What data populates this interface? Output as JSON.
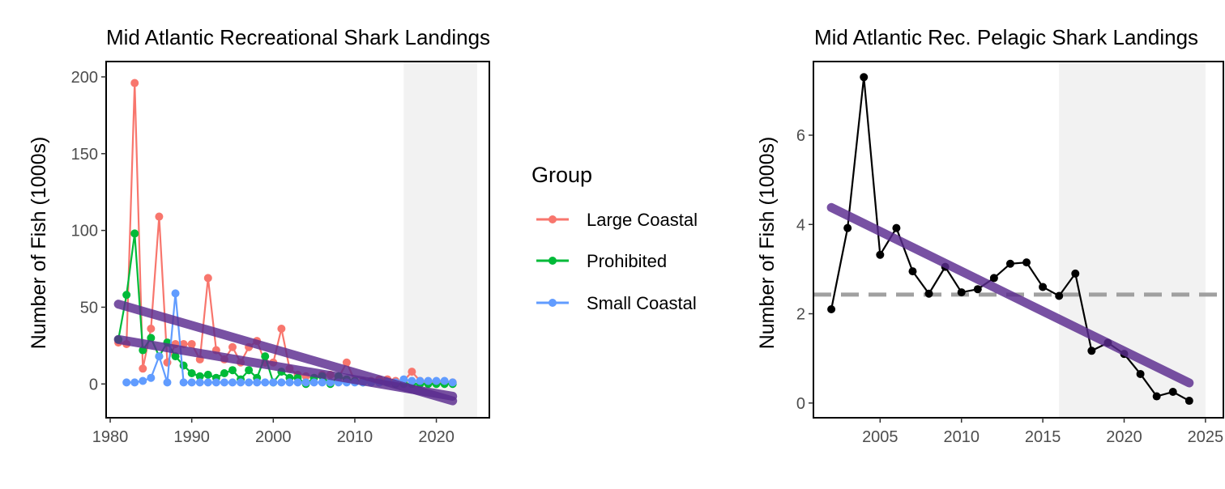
{
  "colors": {
    "large_coastal": "#F8766D",
    "prohibited": "#00BA38",
    "small_coastal": "#619CFF",
    "trend": "#5B2C8F",
    "mean_line": "#A0A0A0",
    "shade": "#F2F2F2",
    "pelagic": "#000000"
  },
  "legend": {
    "title": "Group",
    "items": [
      {
        "label": "Large Coastal",
        "color_key": "large_coastal"
      },
      {
        "label": "Prohibited",
        "color_key": "prohibited"
      },
      {
        "label": "Small Coastal",
        "color_key": "small_coastal"
      }
    ]
  },
  "chart_data": [
    {
      "type": "line",
      "title": "Mid Atlantic Recreational Shark Landings",
      "xlabel": "",
      "ylabel": "Number of Fish (1000s)",
      "xlim": [
        1979.5,
        2026.5
      ],
      "ylim": [
        -22,
        210
      ],
      "xticks": [
        1980,
        1990,
        2000,
        2010,
        2020
      ],
      "yticks": [
        0,
        50,
        100,
        150,
        200
      ],
      "shaded_x": [
        2016,
        2025
      ],
      "grid": false,
      "legend": "right",
      "series": [
        {
          "name": "Large Coastal",
          "color_key": "large_coastal",
          "x": [
            1981,
            1982,
            1983,
            1984,
            1985,
            1986,
            1987,
            1988,
            1989,
            1990,
            1991,
            1992,
            1993,
            1994,
            1995,
            1996,
            1997,
            1998,
            1999,
            2000,
            2001,
            2002,
            2003,
            2004,
            2005,
            2006,
            2007,
            2008,
            2009,
            2010,
            2011,
            2012,
            2013,
            2014,
            2015,
            2016,
            2017,
            2018,
            2019,
            2020,
            2021,
            2022
          ],
          "y": [
            27,
            26,
            196,
            10,
            36,
            109,
            14,
            26,
            26,
            26,
            16,
            69,
            22,
            16,
            24,
            14,
            24,
            28,
            14,
            14,
            36,
            10,
            6,
            5,
            4,
            6,
            6,
            4,
            14,
            2,
            2,
            2,
            3,
            3,
            2,
            2,
            8,
            2,
            1,
            1,
            1,
            1
          ]
        },
        {
          "name": "Prohibited",
          "color_key": "prohibited",
          "x": [
            1981,
            1982,
            1983,
            1984,
            1985,
            1986,
            1987,
            1988,
            1989,
            1990,
            1991,
            1992,
            1993,
            1994,
            1995,
            1996,
            1997,
            1998,
            1999,
            2000,
            2001,
            2002,
            2003,
            2004,
            2005,
            2006,
            2007,
            2008,
            2009,
            2010,
            2011,
            2012,
            2013,
            2014,
            2015,
            2016,
            2017,
            2018,
            2019,
            2020,
            2021,
            2022
          ],
          "y": [
            29,
            58,
            98,
            22,
            30,
            18,
            27,
            18,
            12,
            7,
            5,
            6,
            4,
            7,
            9,
            3,
            9,
            4,
            18,
            1,
            8,
            4,
            4,
            0,
            4,
            5,
            0,
            5,
            3,
            2,
            1,
            1,
            1,
            1,
            0,
            0,
            0,
            0,
            0,
            0,
            0,
            0
          ]
        },
        {
          "name": "Small Coastal",
          "color_key": "small_coastal",
          "x": [
            1982,
            1983,
            1984,
            1985,
            1986,
            1987,
            1988,
            1989,
            1990,
            1991,
            1992,
            1993,
            1994,
            1995,
            1996,
            1997,
            1998,
            1999,
            2000,
            2001,
            2002,
            2003,
            2004,
            2005,
            2006,
            2007,
            2008,
            2009,
            2010,
            2011,
            2012,
            2013,
            2014,
            2015,
            2016,
            2017,
            2018,
            2019,
            2020,
            2021,
            2022
          ],
          "y": [
            1,
            1,
            2,
            4,
            18,
            1,
            59,
            1,
            1,
            1,
            1,
            1,
            1,
            1,
            1,
            1,
            1,
            1,
            1,
            1,
            1,
            1,
            1,
            1,
            1,
            1,
            1,
            1,
            1,
            1,
            1,
            1,
            1,
            1,
            3,
            2,
            2,
            2,
            2,
            2,
            1
          ]
        }
      ],
      "trends": [
        {
          "x": [
            1981,
            2022
          ],
          "y": [
            52,
            -11
          ]
        },
        {
          "x": [
            1981,
            2022
          ],
          "y": [
            29,
            -8
          ]
        }
      ]
    },
    {
      "type": "line",
      "title": "Mid Atlantic Rec. Pelagic Shark Landings",
      "xlabel": "",
      "ylabel": "Number of Fish (1000s)",
      "xlim": [
        2000.9,
        2026.1
      ],
      "ylim": [
        -0.33,
        7.65
      ],
      "xticks": [
        2005,
        2010,
        2015,
        2020,
        2025
      ],
      "yticks": [
        0,
        2,
        4,
        6
      ],
      "shaded_x": [
        2016,
        2025
      ],
      "grid": false,
      "mean_line_y": 2.43,
      "series": [
        {
          "name": "",
          "color_key": "pelagic",
          "x": [
            2002,
            2003,
            2004,
            2005,
            2006,
            2007,
            2008,
            2009,
            2010,
            2011,
            2012,
            2013,
            2014,
            2015,
            2016,
            2017,
            2018,
            2019,
            2020,
            2021,
            2022,
            2023,
            2024
          ],
          "y": [
            2.1,
            3.92,
            7.3,
            3.32,
            3.92,
            2.95,
            2.45,
            3.05,
            2.48,
            2.55,
            2.8,
            3.12,
            3.15,
            2.6,
            2.4,
            2.9,
            1.17,
            1.35,
            1.1,
            0.65,
            0.15,
            0.25,
            0.05
          ]
        }
      ],
      "trends": [
        {
          "x": [
            2002,
            2024
          ],
          "y": [
            4.38,
            0.45
          ]
        }
      ]
    }
  ]
}
